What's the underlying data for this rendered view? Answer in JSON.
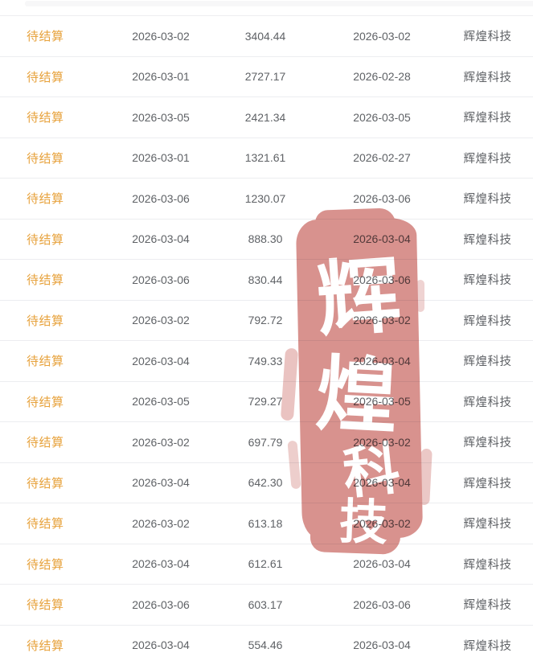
{
  "table": {
    "status_label": "待结算",
    "company_label": "辉煌科技",
    "rows": [
      {
        "status": "待结算",
        "date1": "2026-03-02",
        "amount": "3404.44",
        "date2": "2026-03-02",
        "company": "辉煌科技"
      },
      {
        "status": "待结算",
        "date1": "2026-03-01",
        "amount": "2727.17",
        "date2": "2026-02-28",
        "company": "辉煌科技"
      },
      {
        "status": "待结算",
        "date1": "2026-03-05",
        "amount": "2421.34",
        "date2": "2026-03-05",
        "company": "辉煌科技"
      },
      {
        "status": "待结算",
        "date1": "2026-03-01",
        "amount": "1321.61",
        "date2": "2026-02-27",
        "company": "辉煌科技"
      },
      {
        "status": "待结算",
        "date1": "2026-03-06",
        "amount": "1230.07",
        "date2": "2026-03-06",
        "company": "辉煌科技"
      },
      {
        "status": "待结算",
        "date1": "2026-03-04",
        "amount": "888.30",
        "date2": "2026-03-04",
        "company": "辉煌科技"
      },
      {
        "status": "待结算",
        "date1": "2026-03-06",
        "amount": "830.44",
        "date2": "2026-03-06",
        "company": "辉煌科技"
      },
      {
        "status": "待结算",
        "date1": "2026-03-02",
        "amount": "792.72",
        "date2": "2026-03-02",
        "company": "辉煌科技"
      },
      {
        "status": "待结算",
        "date1": "2026-03-04",
        "amount": "749.33",
        "date2": "2026-03-04",
        "company": "辉煌科技"
      },
      {
        "status": "待结算",
        "date1": "2026-03-05",
        "amount": "729.27",
        "date2": "2026-03-05",
        "company": "辉煌科技"
      },
      {
        "status": "待结算",
        "date1": "2026-03-02",
        "amount": "697.79",
        "date2": "2026-03-02",
        "company": "辉煌科技"
      },
      {
        "status": "待结算",
        "date1": "2026-03-04",
        "amount": "642.30",
        "date2": "2026-03-04",
        "company": "辉煌科技"
      },
      {
        "status": "待结算",
        "date1": "2026-03-02",
        "amount": "613.18",
        "date2": "2026-03-02",
        "company": "辉煌科技"
      },
      {
        "status": "待结算",
        "date1": "2026-03-04",
        "amount": "612.61",
        "date2": "2026-03-04",
        "company": "辉煌科技"
      },
      {
        "status": "待结算",
        "date1": "2026-03-06",
        "amount": "603.17",
        "date2": "2026-03-06",
        "company": "辉煌科技"
      },
      {
        "status": "待结算",
        "date1": "2026-03-04",
        "amount": "554.46",
        "date2": "2026-03-04",
        "company": "辉煌科技"
      }
    ]
  },
  "watermark": {
    "text": "辉煌科技",
    "chars": [
      "辉",
      "煌",
      "科",
      "技"
    ],
    "color": "#d8928e"
  },
  "colors": {
    "status_gold": "#e7a23c",
    "body_text": "#5f6266",
    "row_border": "#ecedf0",
    "watermark_red": "#d8928e"
  }
}
